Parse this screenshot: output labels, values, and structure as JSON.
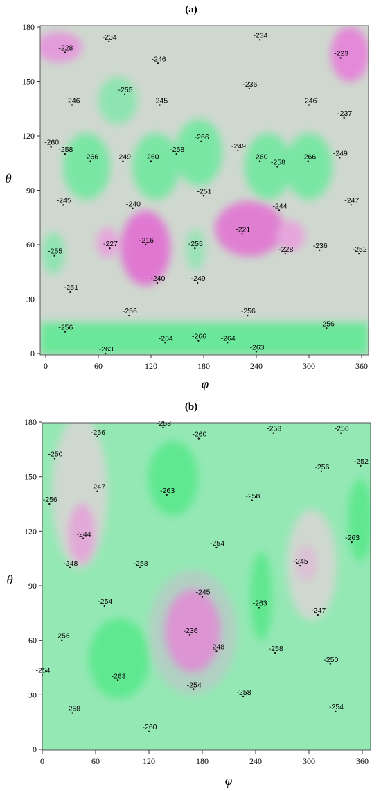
{
  "chart_data": [
    {
      "type": "heatmap",
      "panel_label": "(a)",
      "xlabel": "φ",
      "ylabel": "θ",
      "xlim": [
        0,
        360
      ],
      "ylim": [
        0,
        180
      ],
      "xticks": [
        0,
        60,
        120,
        180,
        240,
        300,
        360
      ],
      "yticks": [
        0,
        30,
        60,
        90,
        120,
        150,
        180
      ],
      "colors": {
        "low": "#5ee890",
        "mid": "#cfd8cf",
        "high": "#e070d0"
      },
      "annotations": [
        {
          "phi": 22,
          "theta": 166,
          "value": -228
        },
        {
          "phi": 72,
          "theta": 172,
          "value": -234
        },
        {
          "phi": 128,
          "theta": 160,
          "value": -246
        },
        {
          "phi": 244,
          "theta": 173,
          "value": -234
        },
        {
          "phi": 336,
          "theta": 163,
          "value": -223
        },
        {
          "phi": 30,
          "theta": 137,
          "value": -246
        },
        {
          "phi": 90,
          "theta": 143,
          "value": -255
        },
        {
          "phi": 130,
          "theta": 137,
          "value": -245
        },
        {
          "phi": 232,
          "theta": 146,
          "value": -236
        },
        {
          "phi": 300,
          "theta": 137,
          "value": -246
        },
        {
          "phi": 340,
          "theta": 130,
          "value": -237
        },
        {
          "phi": 6,
          "theta": 114,
          "value": -260
        },
        {
          "phi": 22,
          "theta": 110,
          "value": -258
        },
        {
          "phi": 51,
          "theta": 106,
          "value": -266
        },
        {
          "phi": 88,
          "theta": 106,
          "value": -249
        },
        {
          "phi": 120,
          "theta": 106,
          "value": -260
        },
        {
          "phi": 149,
          "theta": 110,
          "value": -258
        },
        {
          "phi": 177,
          "theta": 117,
          "value": -266
        },
        {
          "phi": 219,
          "theta": 112,
          "value": -249
        },
        {
          "phi": 244,
          "theta": 106,
          "value": -260
        },
        {
          "phi": 264,
          "theta": 103,
          "value": -258
        },
        {
          "phi": 299,
          "theta": 106,
          "value": -266
        },
        {
          "phi": 335,
          "theta": 108,
          "value": -249
        },
        {
          "phi": 20,
          "theta": 82,
          "value": -245
        },
        {
          "phi": 99,
          "theta": 80,
          "value": -240
        },
        {
          "phi": 180,
          "theta": 87,
          "value": -251
        },
        {
          "phi": 266,
          "theta": 79,
          "value": -244
        },
        {
          "phi": 348,
          "theta": 82,
          "value": -247
        },
        {
          "phi": 10,
          "theta": 54,
          "value": -255
        },
        {
          "phi": 73,
          "theta": 58,
          "value": -227
        },
        {
          "phi": 114,
          "theta": 60,
          "value": -216
        },
        {
          "phi": 170,
          "theta": 58,
          "value": -255
        },
        {
          "phi": 224,
          "theta": 66,
          "value": -221
        },
        {
          "phi": 273,
          "theta": 55,
          "value": -228
        },
        {
          "phi": 312,
          "theta": 57,
          "value": -236
        },
        {
          "phi": 357,
          "theta": 55,
          "value": -252
        },
        {
          "phi": 28,
          "theta": 34,
          "value": -251
        },
        {
          "phi": 127,
          "theta": 39,
          "value": -240
        },
        {
          "phi": 173,
          "theta": 39,
          "value": -249
        },
        {
          "phi": 95,
          "theta": 21,
          "value": -256
        },
        {
          "phi": 230,
          "theta": 21,
          "value": -256
        },
        {
          "phi": 320,
          "theta": 14,
          "value": -256
        },
        {
          "phi": 22,
          "theta": 12,
          "value": -256
        },
        {
          "phi": 136,
          "theta": 6,
          "value": -264
        },
        {
          "phi": 174,
          "theta": 7,
          "value": -266
        },
        {
          "phi": 207,
          "theta": 6,
          "value": -264
        },
        {
          "phi": 68,
          "theta": 0,
          "value": -263
        },
        {
          "phi": 240,
          "theta": 1,
          "value": -263
        }
      ]
    },
    {
      "type": "heatmap",
      "panel_label": "(b)",
      "xlabel": "φ",
      "ylabel": "θ",
      "xlim": [
        0,
        360
      ],
      "ylim": [
        0,
        180
      ],
      "xticks": [
        0,
        60,
        120,
        180,
        240,
        300,
        360
      ],
      "yticks": [
        0,
        30,
        60,
        90,
        120,
        150,
        180
      ],
      "colors": {
        "low": "#5ee890",
        "mid": "#cfd8cf",
        "high": "#e070d0"
      },
      "annotations": [
        {
          "phi": 136,
          "theta": 177,
          "value": -258
        },
        {
          "phi": 62,
          "theta": 172,
          "value": -256
        },
        {
          "phi": 176,
          "theta": 171,
          "value": -260
        },
        {
          "phi": 260,
          "theta": 174,
          "value": -258
        },
        {
          "phi": 336,
          "theta": 174,
          "value": -256
        },
        {
          "phi": 14,
          "theta": 160,
          "value": -250
        },
        {
          "phi": 314,
          "theta": 153,
          "value": -256
        },
        {
          "phi": 358,
          "theta": 156,
          "value": -252
        },
        {
          "phi": 8,
          "theta": 135,
          "value": -256
        },
        {
          "phi": 62,
          "theta": 142,
          "value": -247
        },
        {
          "phi": 140,
          "theta": 140,
          "value": -263
        },
        {
          "phi": 236,
          "theta": 137,
          "value": -258
        },
        {
          "phi": 46,
          "theta": 116,
          "value": -244
        },
        {
          "phi": 348,
          "theta": 114,
          "value": -263
        },
        {
          "phi": 31,
          "theta": 100,
          "value": -248
        },
        {
          "phi": 110,
          "theta": 100,
          "value": -258
        },
        {
          "phi": 196,
          "theta": 111,
          "value": -254
        },
        {
          "phi": 290,
          "theta": 101,
          "value": -245
        },
        {
          "phi": 180,
          "theta": 84,
          "value": -245
        },
        {
          "phi": 244,
          "theta": 78,
          "value": -263
        },
        {
          "phi": 70,
          "theta": 79,
          "value": -254
        },
        {
          "phi": 310,
          "theta": 74,
          "value": -247
        },
        {
          "phi": 166,
          "theta": 63,
          "value": -236
        },
        {
          "phi": 22,
          "theta": 60,
          "value": -256
        },
        {
          "phi": 196,
          "theta": 54,
          "value": -248
        },
        {
          "phi": 262,
          "theta": 53,
          "value": -258
        },
        {
          "phi": 324,
          "theta": 47,
          "value": -250
        },
        {
          "phi": 0,
          "theta": 41,
          "value": -254
        },
        {
          "phi": 85,
          "theta": 38,
          "value": -263
        },
        {
          "phi": 170,
          "theta": 33,
          "value": -254
        },
        {
          "phi": 226,
          "theta": 29,
          "value": -258
        },
        {
          "phi": 34,
          "theta": 20,
          "value": -258
        },
        {
          "phi": 330,
          "theta": 21,
          "value": -254
        },
        {
          "phi": 120,
          "theta": 10,
          "value": -260
        }
      ]
    }
  ]
}
